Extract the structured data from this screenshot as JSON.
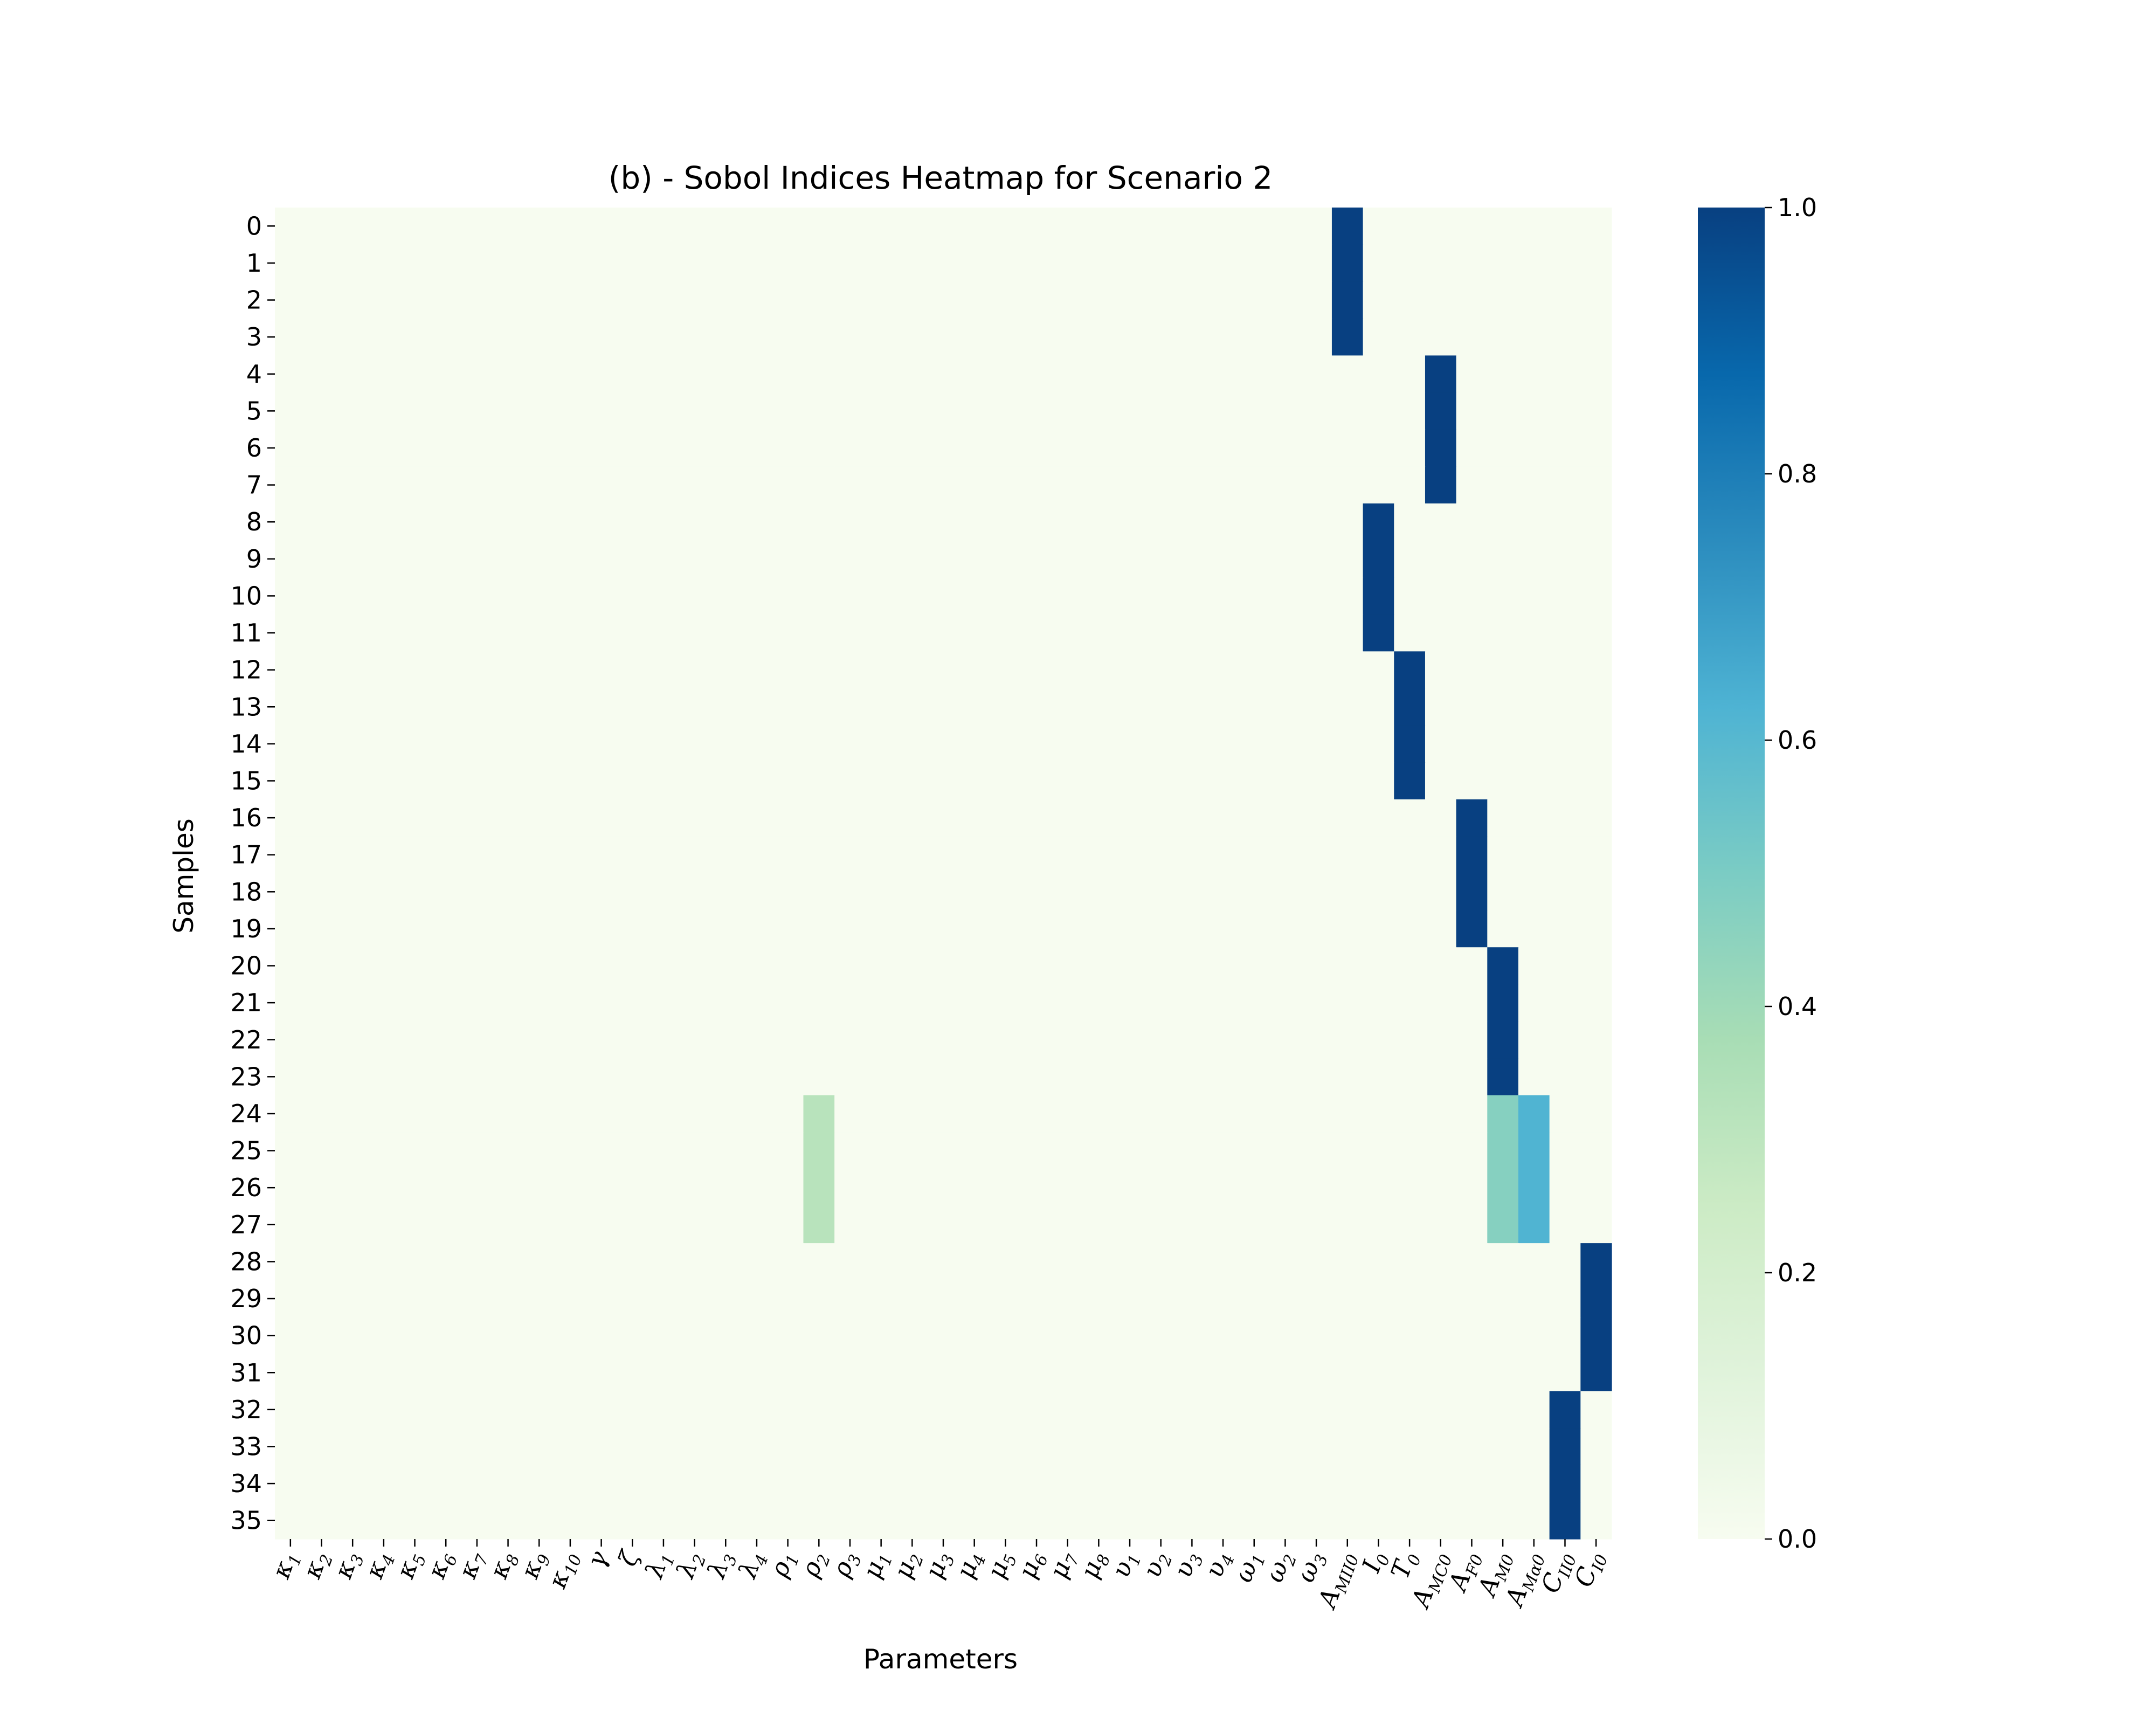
{
  "chart_data": {
    "type": "heatmap",
    "title": "(b) - Sobol Indices Heatmap for Scenario 2",
    "xlabel": "Parameters",
    "ylabel": "Samples",
    "colormap": "GnBu",
    "colorbar": {
      "min": 0.0,
      "max": 1.0,
      "ticks": [
        "0.0",
        "0.2",
        "0.4",
        "0.6",
        "0.8",
        "1.0"
      ]
    },
    "rows": [
      "0",
      "1",
      "2",
      "3",
      "4",
      "5",
      "6",
      "7",
      "8",
      "9",
      "10",
      "11",
      "12",
      "13",
      "14",
      "15",
      "16",
      "17",
      "18",
      "19",
      "20",
      "21",
      "22",
      "23",
      "24",
      "25",
      "26",
      "27",
      "28",
      "29",
      "30",
      "31",
      "32",
      "33",
      "34",
      "35"
    ],
    "columns": [
      {
        "base": "κ",
        "sub": "1"
      },
      {
        "base": "κ",
        "sub": "2"
      },
      {
        "base": "κ",
        "sub": "3"
      },
      {
        "base": "κ",
        "sub": "4"
      },
      {
        "base": "κ",
        "sub": "5"
      },
      {
        "base": "κ",
        "sub": "6"
      },
      {
        "base": "κ",
        "sub": "7"
      },
      {
        "base": "κ",
        "sub": "8"
      },
      {
        "base": "κ",
        "sub": "9"
      },
      {
        "base": "κ",
        "sub": "10"
      },
      {
        "base": "γ",
        "sub": ""
      },
      {
        "base": "ζ",
        "sub": ""
      },
      {
        "base": "λ",
        "sub": "1"
      },
      {
        "base": "λ",
        "sub": "2"
      },
      {
        "base": "λ",
        "sub": "3"
      },
      {
        "base": "λ",
        "sub": "4"
      },
      {
        "base": "ρ",
        "sub": "1"
      },
      {
        "base": "ρ",
        "sub": "2"
      },
      {
        "base": "ρ",
        "sub": "3"
      },
      {
        "base": "μ",
        "sub": "1"
      },
      {
        "base": "μ",
        "sub": "2"
      },
      {
        "base": "μ",
        "sub": "3"
      },
      {
        "base": "μ",
        "sub": "4"
      },
      {
        "base": "μ",
        "sub": "5"
      },
      {
        "base": "μ",
        "sub": "6"
      },
      {
        "base": "μ",
        "sub": "7"
      },
      {
        "base": "μ",
        "sub": "8"
      },
      {
        "base": "υ",
        "sub": "1"
      },
      {
        "base": "υ",
        "sub": "2"
      },
      {
        "base": "υ",
        "sub": "3"
      },
      {
        "base": "υ",
        "sub": "4"
      },
      {
        "base": "ω",
        "sub": "1"
      },
      {
        "base": "ω",
        "sub": "2"
      },
      {
        "base": "ω",
        "sub": "3"
      },
      {
        "base": "A",
        "sub": "MII0"
      },
      {
        "base": "I",
        "sub": "0"
      },
      {
        "base": "T",
        "sub": "0"
      },
      {
        "base": "A",
        "sub": "MC0"
      },
      {
        "base": "A",
        "sub": "F0"
      },
      {
        "base": "A",
        "sub": "M0"
      },
      {
        "base": "A",
        "sub": "Mα0"
      },
      {
        "base": "C",
        "sub": "II0"
      },
      {
        "base": "C",
        "sub": "I0"
      }
    ],
    "background_value": 0.0,
    "blocks": [
      {
        "rows": [
          0,
          3
        ],
        "col": 34,
        "value": 1.0
      },
      {
        "rows": [
          4,
          7
        ],
        "col": 37,
        "value": 1.0
      },
      {
        "rows": [
          8,
          11
        ],
        "col": 35,
        "value": 1.0
      },
      {
        "rows": [
          12,
          15
        ],
        "col": 36,
        "value": 1.0
      },
      {
        "rows": [
          16,
          19
        ],
        "col": 38,
        "value": 1.0
      },
      {
        "rows": [
          20,
          23
        ],
        "col": 39,
        "value": 1.0
      },
      {
        "rows": [
          24,
          27
        ],
        "col": 17,
        "value": 0.32
      },
      {
        "rows": [
          24,
          27
        ],
        "col": 39,
        "value": 0.47
      },
      {
        "rows": [
          24,
          27
        ],
        "col": 40,
        "value": 0.62
      },
      {
        "rows": [
          28,
          31
        ],
        "col": 42,
        "value": 1.0
      },
      {
        "rows": [
          32,
          35
        ],
        "col": 41,
        "value": 1.0
      }
    ]
  }
}
